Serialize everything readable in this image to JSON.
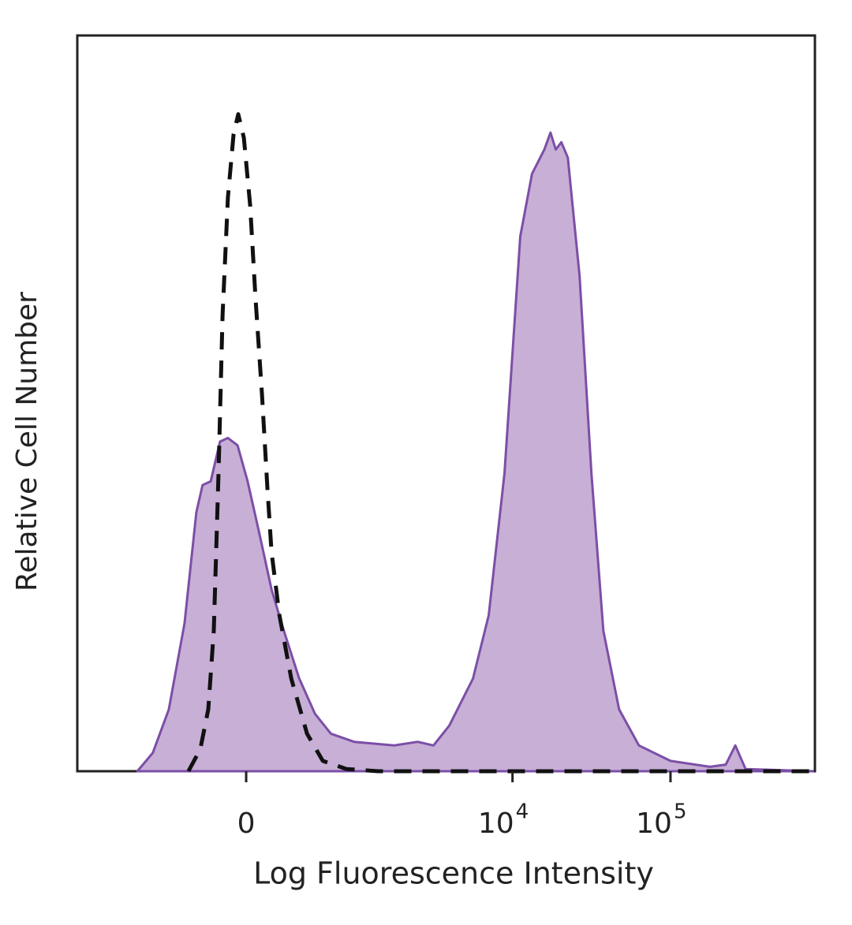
{
  "chart_data": {
    "type": "histogram-overlay",
    "xlabel": "Log Fluorescence Intensity",
    "ylabel": "Relative Cell Number",
    "xscale": "biexponential",
    "xlim": [
      -2400,
      820000
    ],
    "ylim": [
      0,
      100
    ],
    "xticks": [
      0,
      {
        "value": 10000,
        "label": "10",
        "exponent": "4"
      },
      {
        "value": 100000,
        "label": "10",
        "exponent": "5"
      }
    ],
    "series": [
      {
        "color": "#7b4fa6",
        "fill": "#c8afd6",
        "dashed": false,
        "x": [
          -966,
          -752,
          -570,
          -423,
          -327,
          -280,
          -223,
          -161,
          -111,
          -52,
          9,
          81,
          156,
          235,
          352,
          487,
          650,
          953,
          1755,
          2495,
          3150,
          3970,
          5620,
          7070,
          8900,
          11200,
          13300,
          15900,
          17400,
          18800,
          20400,
          22400,
          26600,
          31600,
          37600,
          47300,
          63100,
          100000,
          177600,
          223800,
          257000,
          298600,
          795000
        ],
        "values": [
          0,
          2.5,
          8.4,
          20.1,
          35.2,
          38.9,
          39.4,
          44.8,
          45.3,
          44.3,
          39.4,
          32.2,
          24.7,
          19.3,
          12.6,
          7.8,
          5.1,
          4.0,
          3.5,
          4.0,
          3.5,
          6.2,
          12.6,
          21.2,
          40.5,
          72.7,
          81.2,
          84.5,
          86.8,
          84.5,
          85.5,
          83.4,
          67.3,
          40.5,
          19.1,
          8.4,
          3.5,
          1.4,
          0.6,
          0.9,
          3.5,
          0.3,
          0
        ]
      },
      {
        "color": "#111111",
        "dashed": true,
        "x": [
          -390,
          -297,
          -240,
          -202,
          -171,
          -145,
          -111,
          -76,
          -48,
          -14,
          24,
          57,
          96,
          130,
          156,
          208,
          291,
          416,
          563,
          843,
          1384,
          795000
        ],
        "values": [
          0,
          3.0,
          8.4,
          19.1,
          40.5,
          61.9,
          78.0,
          86.6,
          89.3,
          86.1,
          76.9,
          64.1,
          51.2,
          38.4,
          29.8,
          21.2,
          12.6,
          5.1,
          1.4,
          0.3,
          0,
          0
        ]
      }
    ]
  }
}
